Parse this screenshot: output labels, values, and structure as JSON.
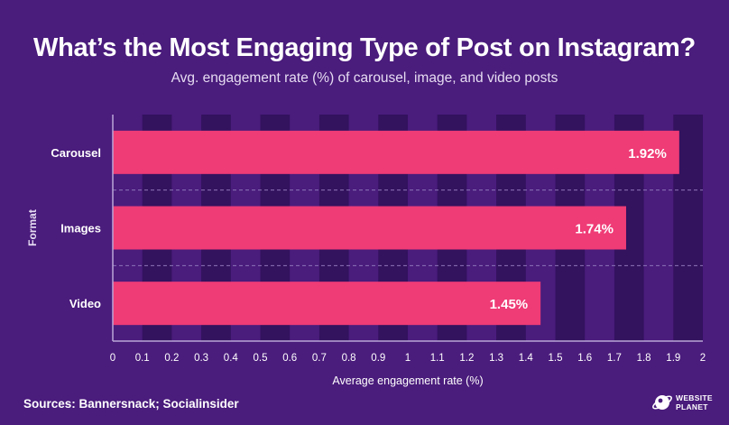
{
  "header": {
    "title": "What’s the Most Engaging Type of Post on Instagram?",
    "subtitle": "Avg. engagement rate (%) of carousel, image, and video posts"
  },
  "footer": {
    "source": "Sources: Bannersnack; Socialinsider",
    "brand_line1": "WEBSITE",
    "brand_line2": "PLANET"
  },
  "colors": {
    "background": "#4a1c7c",
    "band_dark": "#33125e",
    "bar": "#ef3b76",
    "axis": "#b9a6d6"
  },
  "chart_data": {
    "type": "bar",
    "orientation": "horizontal",
    "categories": [
      "Carousel",
      "Images",
      "Video"
    ],
    "values": [
      1.92,
      1.74,
      1.45
    ],
    "value_labels": [
      "1.92%",
      "1.74%",
      "1.45%"
    ],
    "xlabel": "Average engagement rate (%)",
    "ylabel": "Format",
    "xlim": [
      0,
      2
    ],
    "xticks": [
      "0",
      "0.1",
      "0.2",
      "0.3",
      "0.4",
      "0.5",
      "0.6",
      "0.7",
      "0.8",
      "0.9",
      "1",
      "1.1",
      "1.2",
      "1.3",
      "1.4",
      "1.5",
      "1.6",
      "1.7",
      "1.8",
      "1.9",
      "2"
    ],
    "grid": "alternating vertical bands"
  }
}
